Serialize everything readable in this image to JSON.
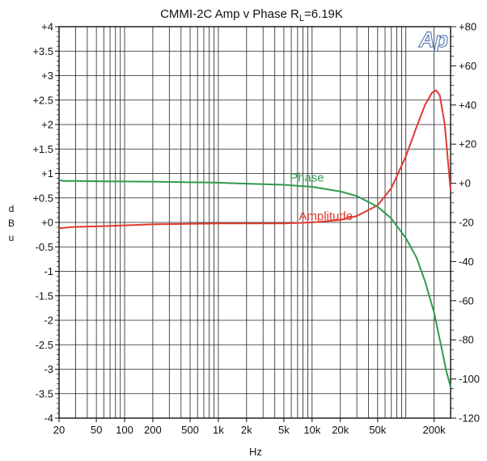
{
  "chart_data": {
    "type": "line",
    "title": "CMMI-2C  Amp v Phase R",
    "title_subscript": "L",
    "title_suffix": "=6.19K",
    "xlabel": "Hz",
    "ylabel_left": [
      "d",
      "B",
      "u"
    ],
    "xscale": "log",
    "xlim": [
      20,
      300000
    ],
    "ylim_left": [
      -4,
      4
    ],
    "ylim_right": [
      -120,
      80
    ],
    "grid": true,
    "x_ticks": [
      20,
      50,
      100,
      200,
      500,
      1000,
      2000,
      5000,
      10000,
      20000,
      50000,
      200000
    ],
    "x_tick_labels": [
      "20",
      "50",
      "100",
      "200",
      "500",
      "1k",
      "2k",
      "5k",
      "10k",
      "20k",
      "50k",
      "200k"
    ],
    "left_ticks": [
      4,
      3.5,
      3,
      2.5,
      2,
      1.5,
      1,
      0.5,
      0,
      -0.5,
      -1,
      -1.5,
      -2,
      -2.5,
      -3,
      -3.5,
      -4
    ],
    "left_tick_labels": [
      "+4",
      "+3.5",
      "+3",
      "+2.5",
      "+2",
      "+1.5",
      "+1",
      "+0.5",
      "+0",
      "-0.5",
      "-1",
      "-1.5",
      "-2",
      "-2.5",
      "-3",
      "-3.5",
      "-4"
    ],
    "right_ticks": [
      80,
      60,
      40,
      20,
      0,
      -20,
      -40,
      -60,
      -80,
      -100,
      -120
    ],
    "right_tick_labels": [
      "+80",
      "+60",
      "+40",
      "+20",
      "+0",
      "-20",
      "-40",
      "-60",
      "-80",
      "-100",
      "-120"
    ],
    "series": [
      {
        "name": "Amplitude",
        "axis": "left",
        "color": "#e03a2f",
        "x": [
          20,
          30,
          50,
          100,
          200,
          500,
          1000,
          2000,
          5000,
          10000,
          20000,
          30000,
          50000,
          70000,
          100000,
          130000,
          160000,
          190000,
          210000,
          230000,
          260000,
          300000
        ],
        "y": [
          -0.12,
          -0.09,
          -0.08,
          -0.06,
          -0.04,
          -0.03,
          -0.02,
          -0.02,
          -0.02,
          0.0,
          0.05,
          0.13,
          0.35,
          0.7,
          1.35,
          1.95,
          2.4,
          2.65,
          2.7,
          2.6,
          2.0,
          0.65
        ]
      },
      {
        "name": "Phase",
        "axis": "right",
        "color": "#2f9a4f",
        "x": [
          20,
          22,
          30,
          50,
          100,
          200,
          500,
          1000,
          2000,
          5000,
          10000,
          20000,
          30000,
          50000,
          70000,
          100000,
          130000,
          160000,
          200000,
          240000,
          270000,
          300000
        ],
        "y": [
          1.8,
          1.2,
          1.2,
          1.0,
          0.9,
          0.8,
          0.5,
          0.3,
          -0.2,
          -0.8,
          -1.8,
          -4.2,
          -6.5,
          -12,
          -18,
          -28,
          -38,
          -50,
          -66,
          -84,
          -96,
          -104
        ]
      }
    ],
    "annotations": [
      {
        "text": "Phase",
        "color": "#2f9a4f"
      },
      {
        "text": "Amplitude",
        "color": "#e03a2f"
      }
    ]
  },
  "logo": {
    "text": "Ap"
  }
}
